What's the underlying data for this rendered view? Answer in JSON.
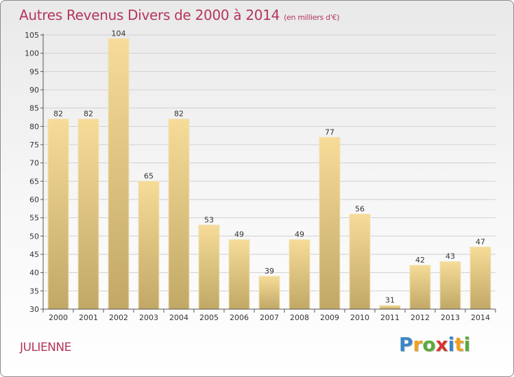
{
  "title": {
    "main": "Autres Revenus Divers de 2000 à 2014",
    "unit": "(en milliers d'€)"
  },
  "place_name": "JULIENNE",
  "logo": {
    "text": "Proxiti",
    "letters": [
      {
        "ch": "P",
        "color": "#3a86c8"
      },
      {
        "ch": "r",
        "color": "#f0a020"
      },
      {
        "ch": "o",
        "color": "#5aaa3a"
      },
      {
        "ch": "x",
        "color": "#d8342c"
      },
      {
        "ch": "i",
        "color": "#3a86c8"
      },
      {
        "ch": "t",
        "color": "#f0a020"
      },
      {
        "ch": "i",
        "color": "#5aaa3a"
      }
    ]
  },
  "colors": {
    "title": "#b5355a",
    "bar_top": "#f6dc98",
    "bar_bottom": "#c2a866",
    "bar_edge": "#efe2b8",
    "grid": "#d0d0d0",
    "axis": "#555555"
  },
  "chart_data": {
    "type": "bar",
    "categories": [
      "2000",
      "2001",
      "2002",
      "2003",
      "2004",
      "2005",
      "2006",
      "2007",
      "2008",
      "2009",
      "2010",
      "2011",
      "2012",
      "2013",
      "2014"
    ],
    "values": [
      82,
      82,
      104,
      65,
      82,
      53,
      49,
      39,
      49,
      77,
      56,
      31,
      42,
      43,
      47
    ],
    "data_labels": [
      "82",
      "82",
      "104",
      "65",
      "82",
      "53",
      "49",
      "39",
      "49",
      "77",
      "56",
      "31",
      "42",
      "43",
      "47"
    ],
    "ylim": [
      30,
      105
    ],
    "yticks": [
      30,
      35,
      40,
      45,
      50,
      55,
      60,
      65,
      70,
      75,
      80,
      85,
      90,
      95,
      100,
      105
    ],
    "grid": true,
    "legend": false,
    "xlabel": "",
    "ylabel": ""
  }
}
